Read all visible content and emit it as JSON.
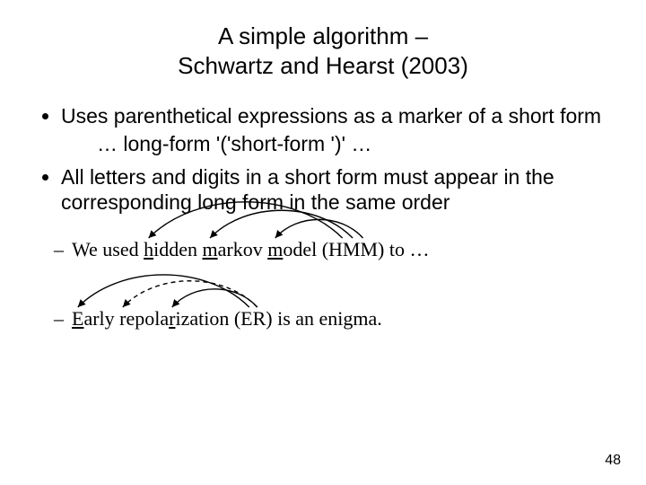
{
  "title_line1": "A simple algorithm –",
  "title_line2": "Schwartz and Hearst (2003)",
  "bullet1": "Uses parenthetical expressions as a marker of a short form",
  "bullet1_sub": "… long-form '('short-form ')' …",
  "bullet2": "All letters and digits in a short form must appear in the corresponding long form in the same order",
  "ex1_prefix": "We used ",
  "ex1_h": "h",
  "ex1_idden": "idden ",
  "ex1_m1": "m",
  "ex1_arkov": "arkov ",
  "ex1_m2": "m",
  "ex1_odel": "odel",
  "ex1_paren": " (HMM) to …",
  "ex2_E": "E",
  "ex2_arly": "arly ",
  "ex2_r1": "r",
  "ex2_epola": "epola",
  "ex2_r2": "r",
  "ex2_ization": "ization",
  "ex2_paren": " (ER) is an enigma.",
  "page_number": "48",
  "arrow_color": "#000000",
  "arrow_width": 1.4
}
